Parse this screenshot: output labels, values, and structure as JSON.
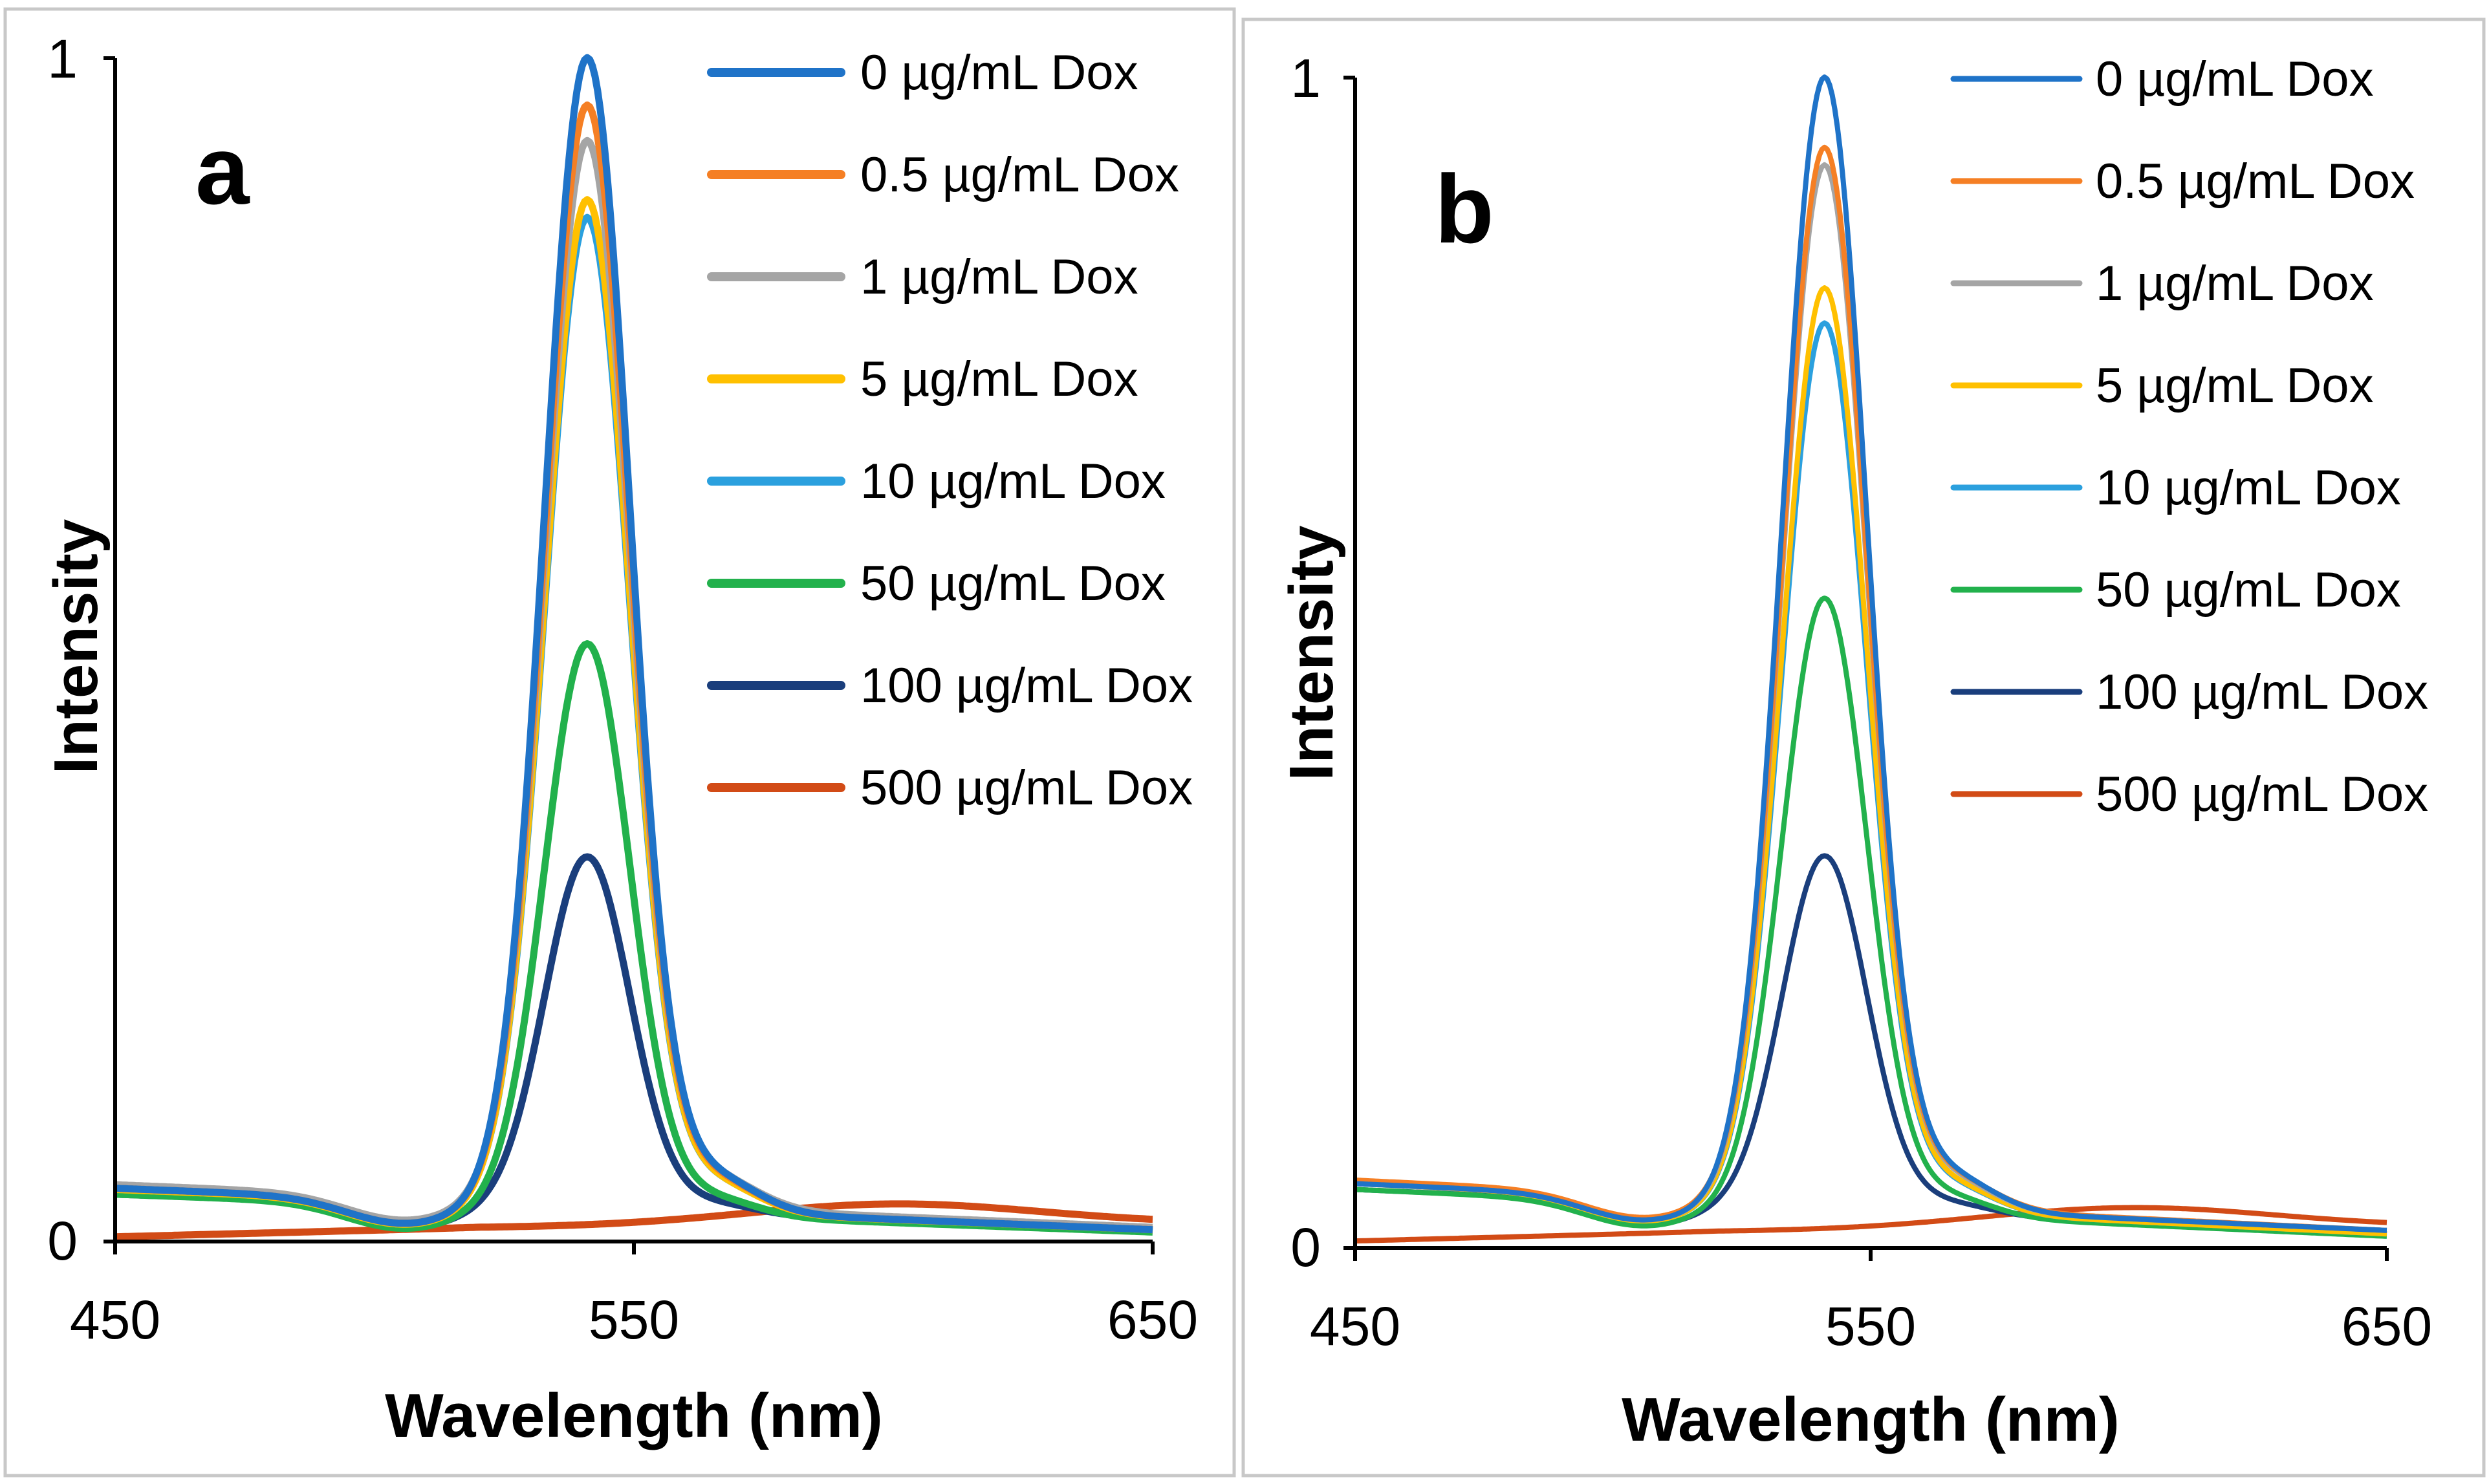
{
  "chart_data": [
    {
      "type": "line",
      "panel_label": "a",
      "xlabel": "Wavelength (nm)",
      "ylabel": "Intensity",
      "xlim": [
        450,
        650
      ],
      "ylim": [
        0,
        1
      ],
      "xticks": [
        "450",
        "550",
        "650"
      ],
      "yticks": [
        "0",
        "1"
      ],
      "legend_position": "top-right",
      "series": [
        {
          "name": "0 µg/mL Dox",
          "color": "#1F73C8",
          "peak": 1.0,
          "baseline_left": 0.045,
          "baseline_right": 0.01
        },
        {
          "name": "0.5 µg/mL Dox",
          "color": "#F57F24",
          "peak": 0.96,
          "baseline_left": 0.045,
          "baseline_right": 0.01
        },
        {
          "name": "1 µg/mL Dox",
          "color": "#A5A5A5",
          "peak": 0.93,
          "baseline_left": 0.048,
          "baseline_right": 0.012
        },
        {
          "name": "5 µg/mL Dox",
          "color": "#FFC000",
          "peak": 0.88,
          "baseline_left": 0.044,
          "baseline_right": 0.01
        },
        {
          "name": "10 µg/mL Dox",
          "color": "#2BA0DE",
          "peak": 0.865,
          "baseline_left": 0.045,
          "baseline_right": 0.01
        },
        {
          "name": "50 µg/mL Dox",
          "color": "#22B14C",
          "peak": 0.505,
          "baseline_left": 0.04,
          "baseline_right": 0.008
        },
        {
          "name": "100 µg/mL Dox",
          "color": "#1A3E7C",
          "peak": 0.325,
          "baseline_left": 0.04,
          "baseline_right": 0.01
        },
        {
          "name": "500 µg/mL Dox",
          "color": "#D24B16",
          "flat": true,
          "baseline_left": 0.01,
          "baseline_right": 0.015
        }
      ]
    },
    {
      "type": "line",
      "panel_label": "b",
      "xlabel": "Wavelength (nm)",
      "ylabel": "Intensity",
      "xlim": [
        450,
        650
      ],
      "ylim": [
        0,
        1
      ],
      "xticks": [
        "450",
        "550",
        "650"
      ],
      "yticks": [
        "0",
        "1"
      ],
      "legend_position": "top-right",
      "series": [
        {
          "name": "0 µg/mL Dox",
          "color": "#1F73C8",
          "peak": 1.0,
          "baseline_left": 0.055,
          "baseline_right": 0.015
        },
        {
          "name": "0.5 µg/mL Dox",
          "color": "#F57F24",
          "peak": 0.94,
          "baseline_left": 0.058,
          "baseline_right": 0.015
        },
        {
          "name": "1 µg/mL Dox",
          "color": "#A5A5A5",
          "peak": 0.925,
          "baseline_left": 0.055,
          "baseline_right": 0.015
        },
        {
          "name": "5 µg/mL Dox",
          "color": "#FFC000",
          "peak": 0.82,
          "baseline_left": 0.055,
          "baseline_right": 0.012
        },
        {
          "name": "10 µg/mL Dox",
          "color": "#2BA0DE",
          "peak": 0.79,
          "baseline_left": 0.055,
          "baseline_right": 0.012
        },
        {
          "name": "50 µg/mL Dox",
          "color": "#22B14C",
          "peak": 0.555,
          "baseline_left": 0.05,
          "baseline_right": 0.01
        },
        {
          "name": "100 µg/mL Dox",
          "color": "#1A3E7C",
          "peak": 0.335,
          "baseline_left": 0.05,
          "baseline_right": 0.012
        },
        {
          "name": "500 µg/mL Dox",
          "color": "#D24B16",
          "flat": true,
          "baseline_left": 0.012,
          "baseline_right": 0.018
        }
      ]
    }
  ]
}
